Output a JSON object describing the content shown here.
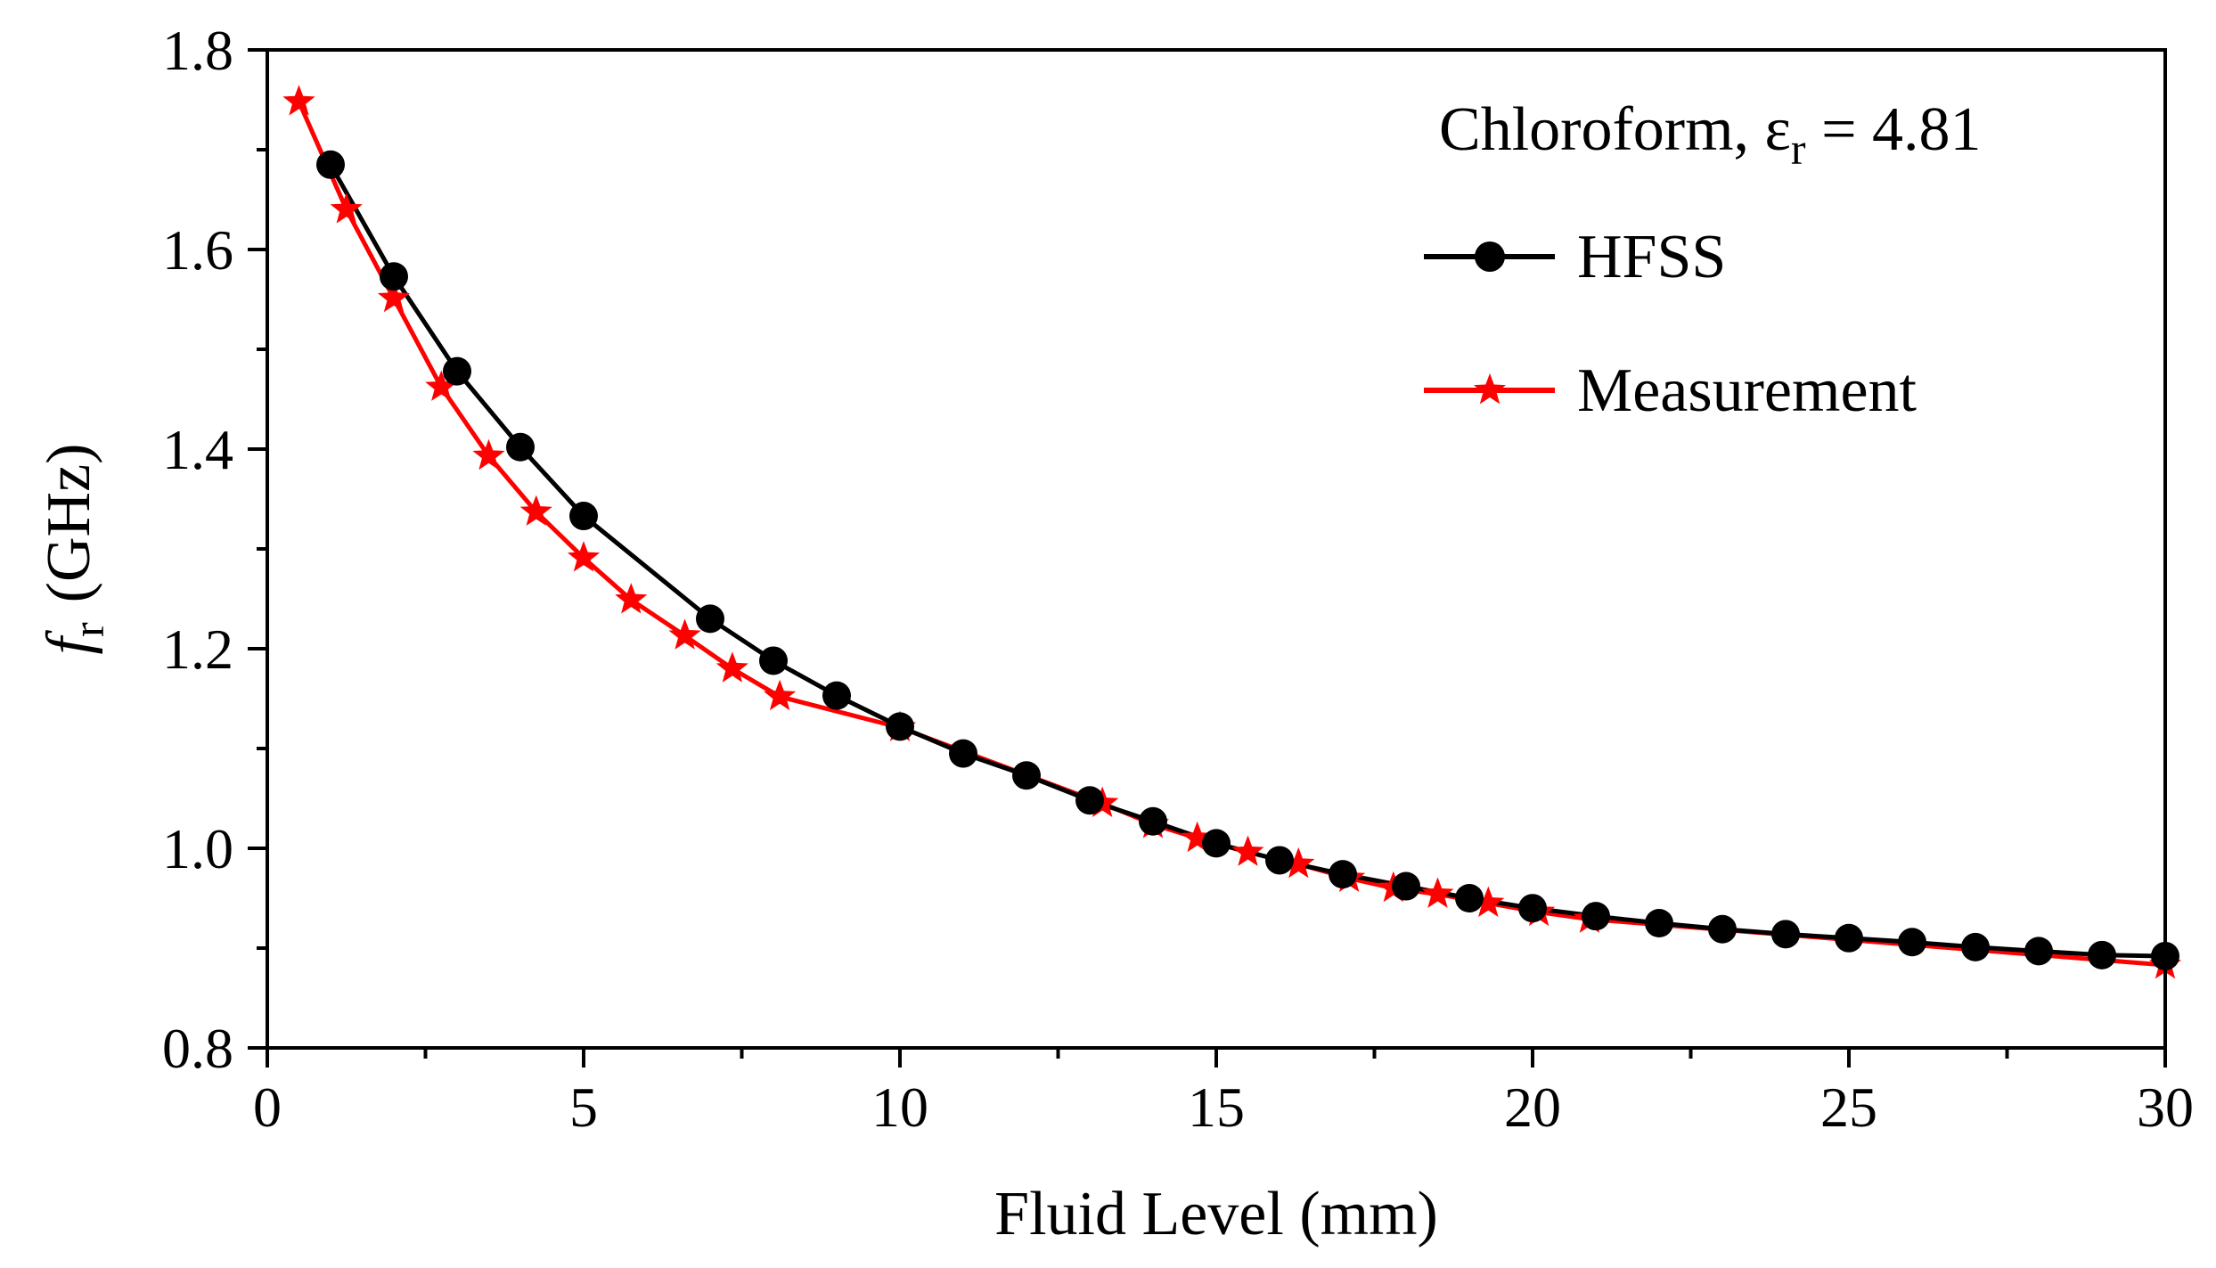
{
  "chart_data": {
    "type": "line",
    "title": "",
    "xlabel": "Fluid Level (mm)",
    "ylabel_symbol": "f",
    "ylabel_subscript": "r",
    "ylabel_unit": "(GHz)",
    "xlim": [
      0,
      30
    ],
    "ylim": [
      0.8,
      1.8
    ],
    "x_ticks": [
      0,
      5,
      10,
      15,
      20,
      25,
      30
    ],
    "x_tick_labels": [
      "0",
      "5",
      "10",
      "15",
      "20",
      "25",
      "30"
    ],
    "y_ticks": [
      0.8,
      1.0,
      1.2,
      1.4,
      1.6,
      1.8
    ],
    "y_tick_labels": [
      "0.8",
      "1.0",
      "1.2",
      "1.4",
      "1.6",
      "1.8"
    ],
    "grid": false,
    "legend": {
      "placement": "top-right",
      "header_text": "Chloroform, ε",
      "header_subscript": "r",
      "header_value": " = 4.81"
    },
    "series": [
      {
        "name": "HFSS",
        "color": "#000000",
        "marker": "circle",
        "x": [
          1,
          2,
          3,
          4,
          5,
          7,
          8,
          9,
          10,
          11,
          12,
          13,
          14,
          15,
          16,
          17,
          18,
          19,
          20,
          21,
          22,
          23,
          24,
          25,
          26,
          27,
          28,
          29,
          30
        ],
        "y": [
          1.685,
          1.573,
          1.478,
          1.402,
          1.333,
          1.23,
          1.188,
          1.153,
          1.122,
          1.095,
          1.073,
          1.048,
          1.027,
          1.005,
          0.988,
          0.974,
          0.962,
          0.95,
          0.94,
          0.932,
          0.925,
          0.919,
          0.914,
          0.91,
          0.906,
          0.901,
          0.897,
          0.893,
          0.892
        ]
      },
      {
        "name": "Measurement",
        "color": "#ff0000",
        "marker": "star",
        "x": [
          0.5,
          1.25,
          2.0,
          2.75,
          3.5,
          4.25,
          5.0,
          5.75,
          6.6,
          7.35,
          8.1,
          10.0,
          13.2,
          14.0,
          14.7,
          15.5,
          16.3,
          17.1,
          17.8,
          18.5,
          19.3,
          20.1,
          20.9,
          30.0
        ],
        "y": [
          1.748,
          1.64,
          1.551,
          1.462,
          1.393,
          1.337,
          1.291,
          1.249,
          1.213,
          1.18,
          1.152,
          1.121,
          1.045,
          1.024,
          1.01,
          0.996,
          0.984,
          0.97,
          0.96,
          0.954,
          0.945,
          0.936,
          0.929,
          0.883
        ]
      }
    ]
  }
}
